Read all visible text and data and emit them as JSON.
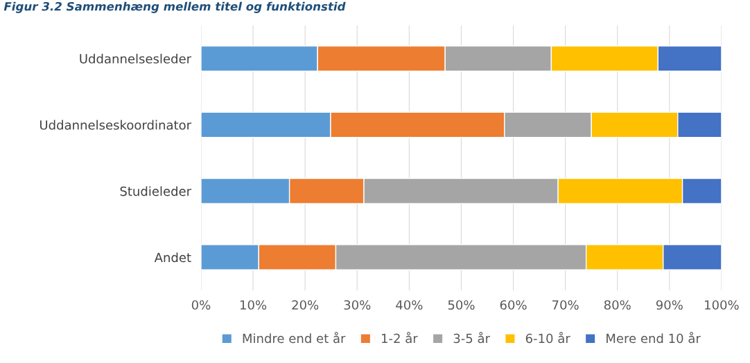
{
  "chart_data": {
    "type": "bar",
    "orientation": "horizontal",
    "stacked": true,
    "title": "Figur 3.2 Sammenhæng mellem titel og funktionstid",
    "categories": [
      "Uddannelsesleder",
      "Uddannelseskoordinator",
      "Studieleder",
      "Andet"
    ],
    "series": [
      {
        "name": "Mindre end et år",
        "color": "#5b9bd5",
        "values": [
          22.4,
          24.9,
          17.0,
          11.1
        ]
      },
      {
        "name": "1-2 år",
        "color": "#ed7d31",
        "values": [
          24.5,
          33.4,
          14.3,
          14.8
        ]
      },
      {
        "name": "3-5 år",
        "color": "#a5a5a5",
        "values": [
          20.4,
          16.7,
          37.3,
          48.1
        ]
      },
      {
        "name": "6-10 år",
        "color": "#ffc000",
        "values": [
          20.5,
          16.6,
          23.9,
          14.8
        ]
      },
      {
        "name": "Mere end 10 år",
        "color": "#4472c4",
        "values": [
          12.2,
          8.4,
          7.5,
          11.2
        ]
      }
    ],
    "xlim": [
      0,
      100
    ],
    "xticks": [
      {
        "value": 0,
        "label": "0%"
      },
      {
        "value": 10,
        "label": "10%"
      },
      {
        "value": 20,
        "label": "20%"
      },
      {
        "value": 30,
        "label": "30%"
      },
      {
        "value": 40,
        "label": "40%"
      },
      {
        "value": 50,
        "label": "50%"
      },
      {
        "value": 60,
        "label": "60%"
      },
      {
        "value": 70,
        "label": "70%"
      },
      {
        "value": 80,
        "label": "80%"
      },
      {
        "value": 90,
        "label": "90%"
      },
      {
        "value": 100,
        "label": "100%"
      }
    ],
    "grid": "x",
    "legend": "bottom"
  }
}
